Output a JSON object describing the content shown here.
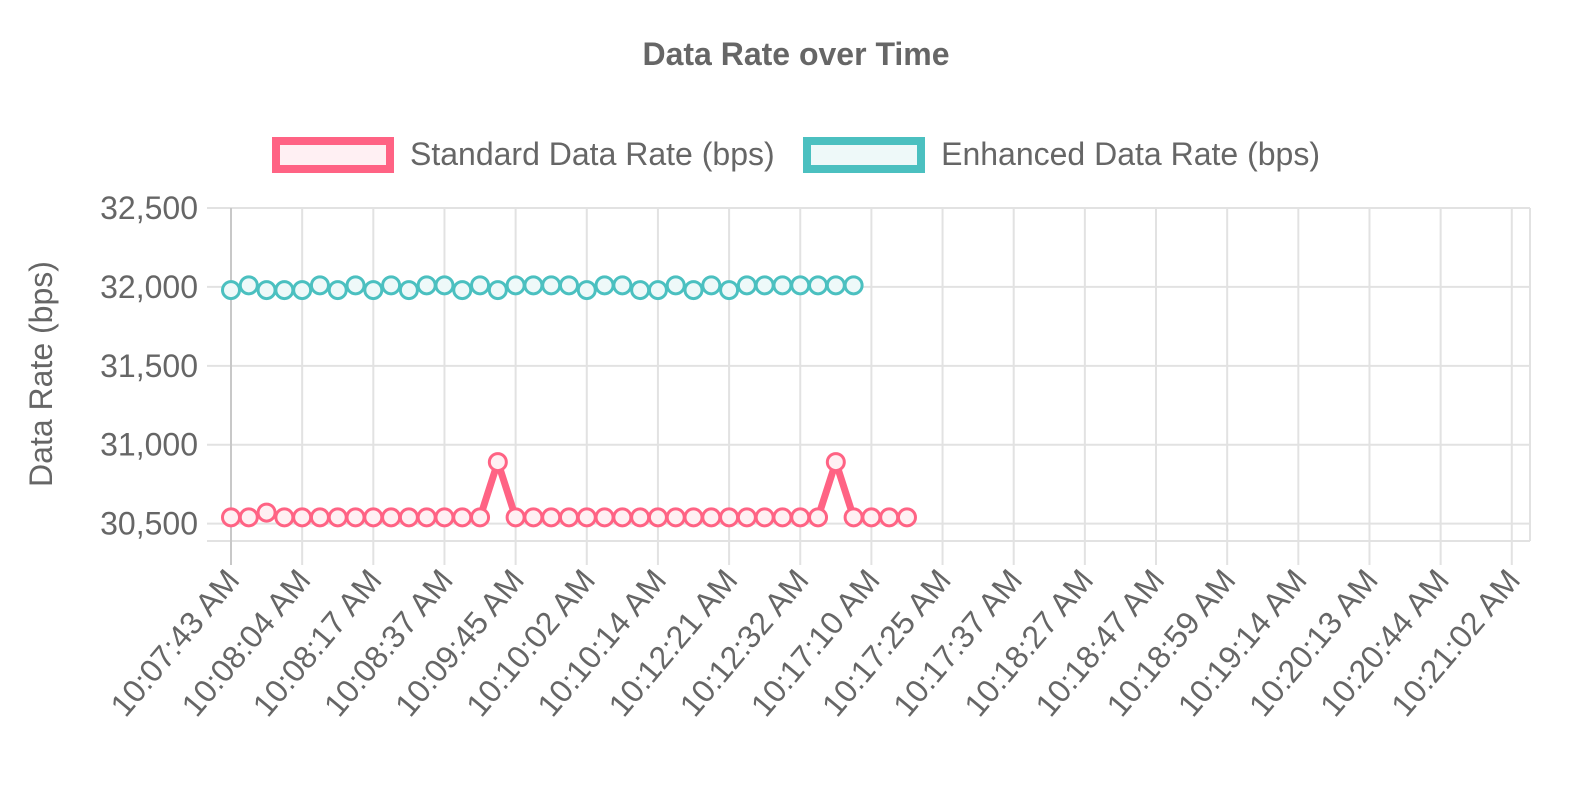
{
  "chart_data": {
    "type": "line",
    "title": "Data Rate over Time",
    "xlabel": "",
    "ylabel": "Data Rate (bps)",
    "ylim": [
      30390,
      32500
    ],
    "yticks": [
      "32,500",
      "32,000",
      "31,500",
      "31,000",
      "30,500"
    ],
    "ytick_values": [
      32500,
      32000,
      31500,
      31000,
      30500
    ],
    "grid": true,
    "legend_position": "top",
    "x_category_count": 72,
    "x_ticks": [
      "10:07:43 AM",
      "10:08:04 AM",
      "10:08:17 AM",
      "10:08:37 AM",
      "10:09:45 AM",
      "10:10:02 AM",
      "10:10:14 AM",
      "10:12:21 AM",
      "10:12:32 AM",
      "10:17:10 AM",
      "10:17:25 AM",
      "10:17:37 AM",
      "10:18:27 AM",
      "10:18:47 AM",
      "10:18:59 AM",
      "10:19:14 AM",
      "10:20:13 AM",
      "10:20:44 AM",
      "10:21:02 AM"
    ],
    "series": [
      {
        "name": "Standard Data Rate (bps)",
        "color": "#ff6384",
        "fill": "#fff0f3",
        "values": [
          30540,
          30540,
          30570,
          30540,
          30540,
          30540,
          30540,
          30540,
          30540,
          30540,
          30540,
          30540,
          30540,
          30540,
          30540,
          30890,
          30540,
          30540,
          30540,
          30540,
          30540,
          30540,
          30540,
          30540,
          30540,
          30540,
          30540,
          30540,
          30540,
          30540,
          30540,
          30540,
          30540,
          30540,
          30890,
          30540,
          30540,
          30540,
          30540
        ]
      },
      {
        "name": "Enhanced Data Rate (bps)",
        "color": "#4bc0c0",
        "fill": "#eef9f9",
        "values": [
          31980,
          32010,
          31980,
          31980,
          31980,
          32010,
          31980,
          32010,
          31980,
          32010,
          31980,
          32010,
          32010,
          31980,
          32010,
          31980,
          32010,
          32010,
          32010,
          32010,
          31980,
          32010,
          32010,
          31980,
          31980,
          32010,
          31980,
          32010,
          31980,
          32010,
          32010,
          32010,
          32010,
          32010,
          32010,
          32010
        ]
      }
    ]
  }
}
